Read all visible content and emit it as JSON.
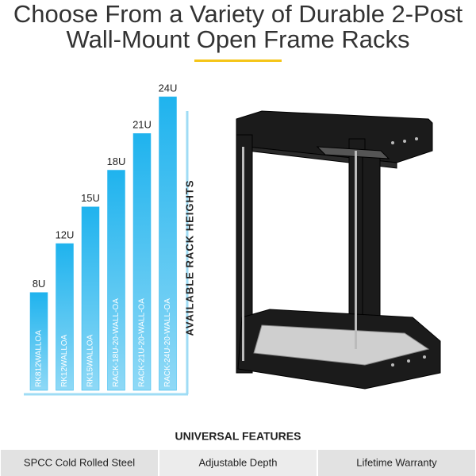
{
  "header": {
    "title_lines": [
      "Choose From a Variety of Durable 2-Post",
      "Wall-Mount Open Frame Racks"
    ]
  },
  "chart_data": {
    "type": "bar",
    "categories": [
      "RK812WALLOA",
      "RK12WALLOA",
      "RK15WALLOA",
      "RACK-18U-20-WALL-OA",
      "RACK-21U-20-WALL-OA",
      "RACK-24U-20-WALL-OA"
    ],
    "values": [
      8,
      12,
      15,
      18,
      21,
      24
    ],
    "value_labels": [
      "8U",
      "12U",
      "15U",
      "18U",
      "21U",
      "24U"
    ],
    "color": "#29b6ef",
    "y_label": "AVAILABLE RACK HEIGHTS"
  },
  "features": {
    "title": "UNIVERSAL FEATURES",
    "items": [
      "SPCC Cold Rolled Steel",
      "Adjustable Depth",
      "Lifetime Warranty"
    ]
  }
}
